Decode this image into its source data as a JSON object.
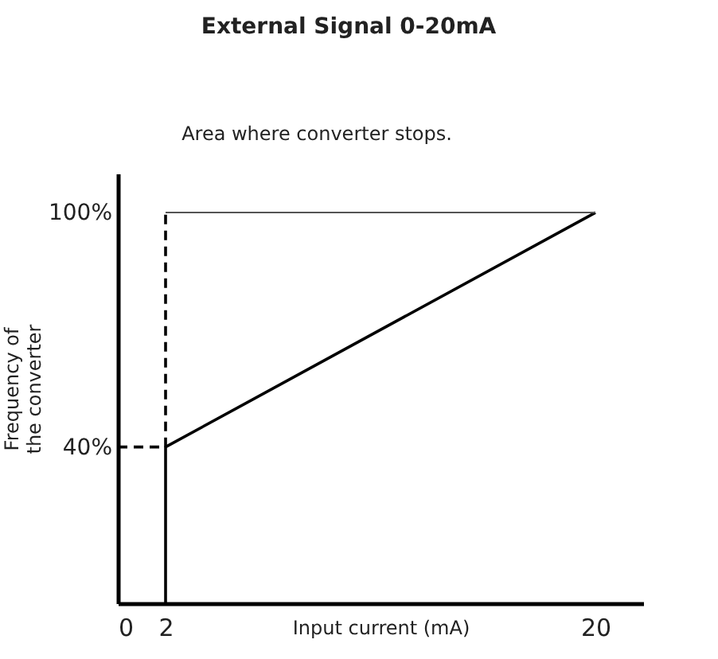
{
  "chart_data": {
    "type": "line",
    "title": "External Signal 0-20mA",
    "xlabel": "Input current (mA)",
    "ylabel": "Frequency of the converter",
    "annotations": [
      "Area where converter stops."
    ],
    "series": [
      {
        "x": [
          2,
          2,
          20
        ],
        "values": [
          0,
          40,
          100
        ],
        "color": "#000000",
        "line_style": "solid"
      },
      {
        "x": [
          0,
          2,
          2
        ],
        "values": [
          40,
          40,
          100
        ],
        "color": "#000000",
        "line_style": "dashed"
      },
      {
        "x": [
          2,
          20
        ],
        "values": [
          100,
          100
        ],
        "color": "#555555",
        "line_style": "solid"
      }
    ],
    "xlim": [
      0,
      22
    ],
    "ylim": [
      0,
      110
    ],
    "xticks": [
      0,
      2,
      20
    ],
    "yticks": [
      {
        "value": 40,
        "label": "40%"
      },
      {
        "value": 100,
        "label": "100%"
      }
    ],
    "grid": false,
    "marker": "none"
  }
}
